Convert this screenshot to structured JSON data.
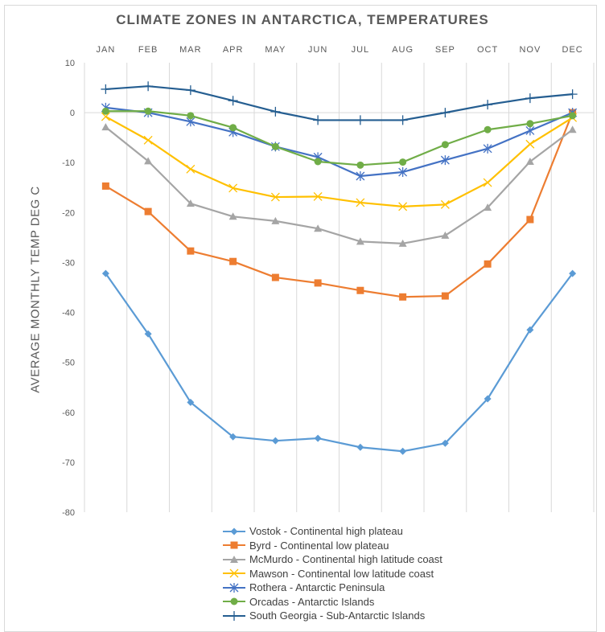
{
  "chart_data": {
    "type": "line",
    "title": "CLIMATE ZONES IN ANTARCTICA, TEMPERATURES",
    "xlabel": "",
    "ylabel": "AVERAGE MONTHLY TEMP DEG C",
    "categories": [
      "JAN",
      "FEB",
      "MAR",
      "APR",
      "MAY",
      "JUN",
      "JUL",
      "AUG",
      "SEP",
      "OCT",
      "NOV",
      "DEC"
    ],
    "ylim": [
      -80,
      10
    ],
    "yticks": [
      10,
      0,
      -10,
      -20,
      -30,
      -40,
      -50,
      -60,
      -70,
      -80
    ],
    "grid": "vertical",
    "legend_position": "bottom",
    "x_axis_position": "top",
    "series": [
      {
        "name": "Vostok - Continental high plateau",
        "color": "#5b9bd5",
        "marker": "diamond",
        "values": [
          -32.2,
          -44.3,
          -58.0,
          -64.9,
          -65.7,
          -65.2,
          -67.0,
          -67.8,
          -66.2,
          -57.3,
          -43.5,
          -32.2
        ]
      },
      {
        "name": "Byrd - Continental low plateau",
        "color": "#ed7d31",
        "marker": "square",
        "values": [
          -14.7,
          -19.8,
          -27.7,
          -29.8,
          -33.0,
          -34.1,
          -35.6,
          -36.9,
          -36.7,
          -30.3,
          -21.4,
          0.0
        ]
      },
      {
        "name": "McMurdo - Continental high latitude coast",
        "color": "#a5a5a5",
        "marker": "triangle",
        "values": [
          -2.9,
          -9.7,
          -18.2,
          -20.8,
          -21.7,
          -23.2,
          -25.8,
          -26.2,
          -24.6,
          -19.0,
          -9.8,
          -3.4
        ]
      },
      {
        "name": "Mawson - Continental low latitude coast",
        "color": "#ffc000",
        "marker": "x",
        "values": [
          -0.8,
          -5.5,
          -11.3,
          -15.1,
          -16.9,
          -16.8,
          -18.0,
          -18.8,
          -18.4,
          -14.0,
          -6.3,
          -1.0
        ]
      },
      {
        "name": "Rothera - Antarctic Peninsula",
        "color": "#4472c4",
        "marker": "star",
        "values": [
          1.0,
          0.0,
          -1.8,
          -3.9,
          -6.8,
          -8.9,
          -12.7,
          -11.9,
          -9.5,
          -7.2,
          -3.6,
          0.0
        ]
      },
      {
        "name": "Orcadas - Antarctic Islands",
        "color": "#70ad47",
        "marker": "circle",
        "values": [
          0.3,
          0.3,
          -0.6,
          -3.0,
          -6.8,
          -9.8,
          -10.5,
          -9.9,
          -6.4,
          -3.4,
          -2.2,
          -0.6
        ]
      },
      {
        "name": "South Georgia - Sub-Antarctic Islands",
        "color": "#255e91",
        "marker": "plus",
        "values": [
          4.7,
          5.3,
          4.5,
          2.4,
          0.2,
          -1.5,
          -1.5,
          -1.5,
          0.0,
          1.6,
          2.9,
          3.7
        ]
      }
    ]
  }
}
